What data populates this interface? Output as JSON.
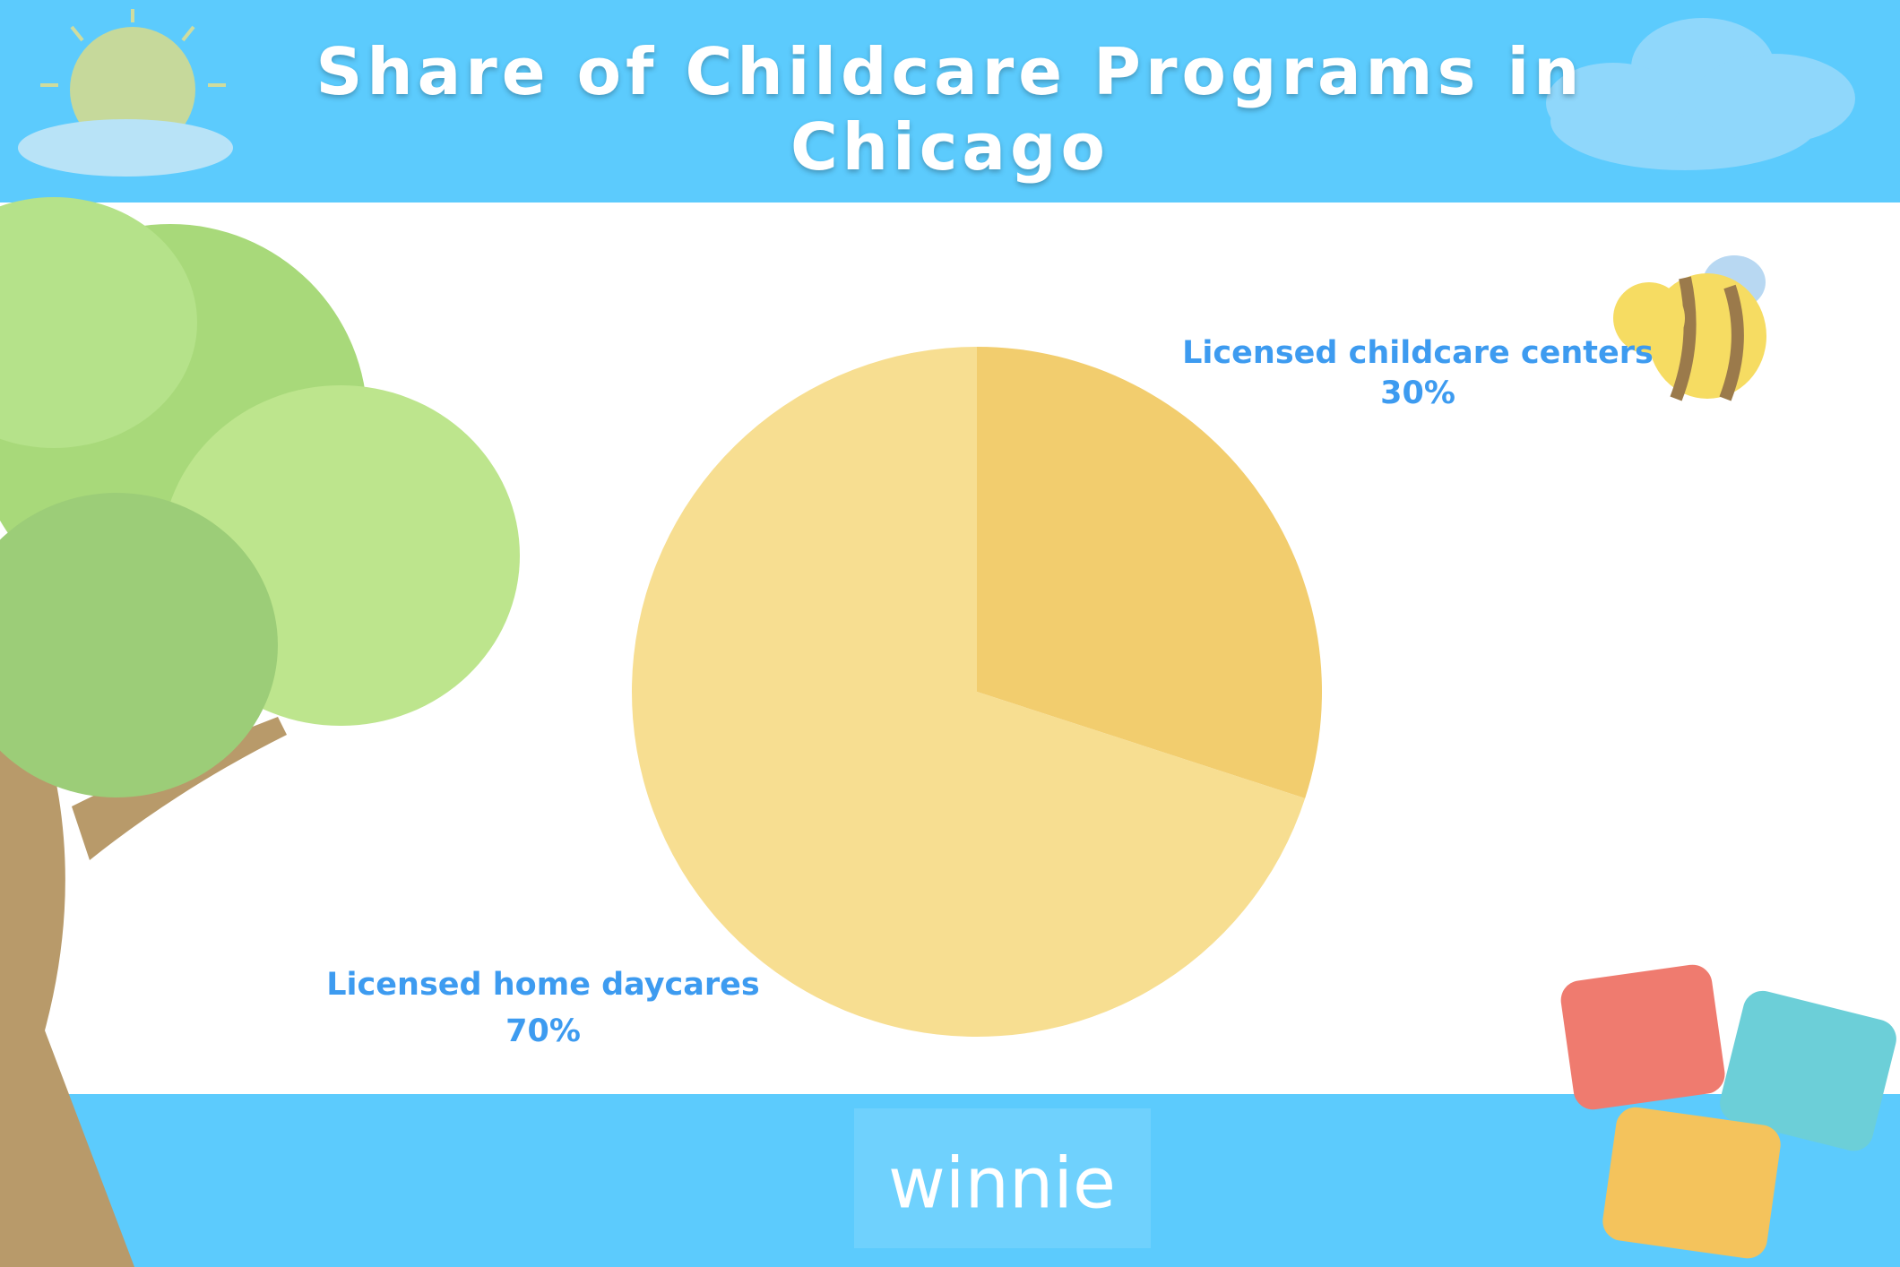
{
  "chart_data": {
    "type": "pie",
    "title": "Share of Childcare Programs in Chicago",
    "categories": [
      "Licensed childcare centers",
      "Licensed home daycares"
    ],
    "values": [
      30,
      70
    ],
    "value_labels": [
      "30%",
      "70%"
    ],
    "colors": [
      "#f2cd6e",
      "#f7de91"
    ]
  },
  "footer": {
    "logo": "winnie"
  }
}
